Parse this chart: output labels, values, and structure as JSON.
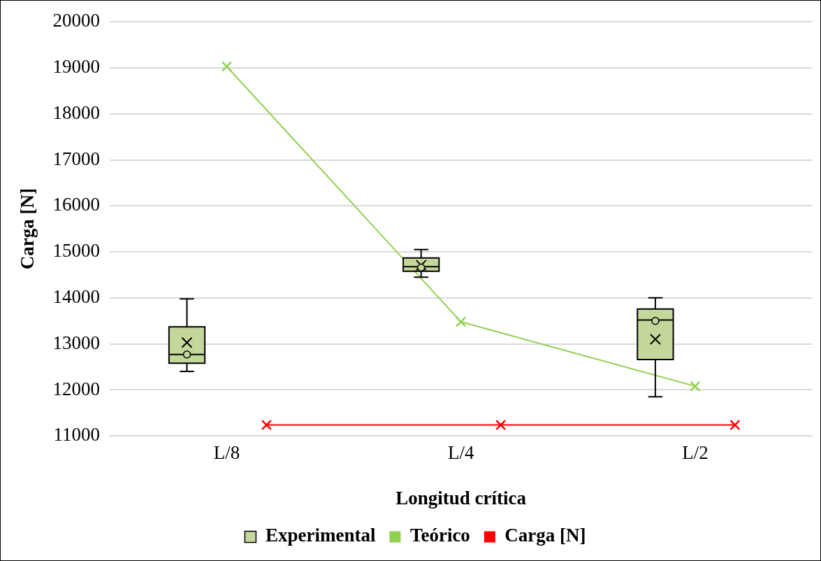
{
  "chart_data": {
    "type": "box",
    "xlabel": "Longitud crítica",
    "ylabel": "Carga [N]",
    "categories": [
      "L/8",
      "L/4",
      "L/2"
    ],
    "ylim": [
      11000,
      20000
    ],
    "yticks": [
      11000,
      12000,
      13000,
      14000,
      15000,
      16000,
      17000,
      18000,
      19000,
      20000
    ],
    "grid": "y",
    "legend": "bottom",
    "series": [
      {
        "name": "Experimental",
        "color": "#c4d79b",
        "boxes": [
          {
            "low": 12400,
            "q1": 12580,
            "median": 12770,
            "q3": 13370,
            "high": 13980,
            "mean": 13030
          },
          {
            "low": 14450,
            "q1": 14580,
            "median": 14680,
            "q3": 14870,
            "high": 15050,
            "mean": 14710
          },
          {
            "low": 11850,
            "q1": 12660,
            "median": 13520,
            "q3": 13760,
            "high": 14000,
            "mean": 13100
          }
        ]
      },
      {
        "type": "scatter",
        "color": "#000000",
        "marker": "circle",
        "x": [
          "L/8",
          "L/4",
          "L/2"
        ],
        "values": [
          12770,
          14660,
          13500
        ]
      },
      {
        "name": "Teórico",
        "type": "line",
        "color": "#92d050",
        "marker": "cross",
        "values": [
          19030,
          13480,
          12080
        ]
      },
      {
        "name": "Carga [N]",
        "type": "line",
        "color": "#ff0000",
        "marker": "cross",
        "values": [
          11240,
          11240,
          11240
        ]
      }
    ]
  }
}
